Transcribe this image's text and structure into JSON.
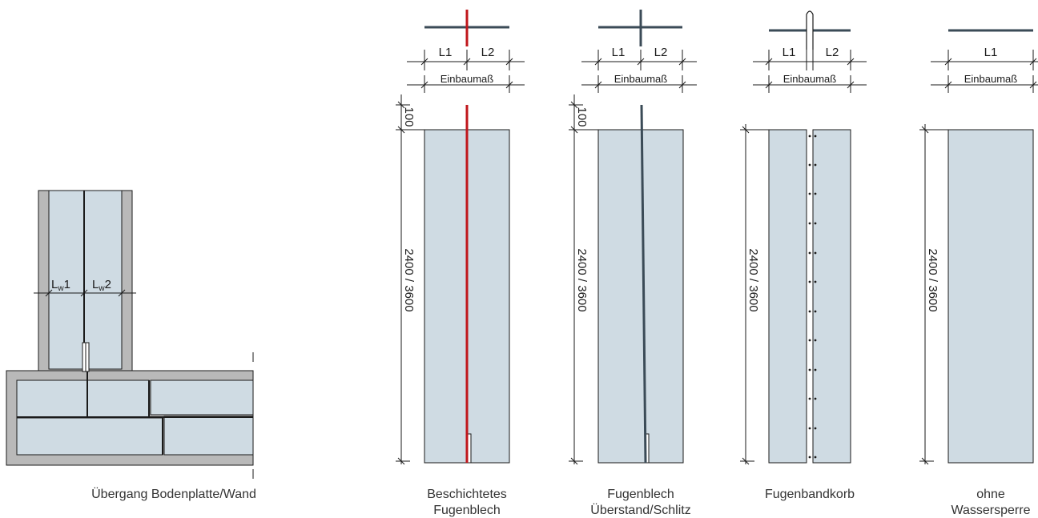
{
  "colors": {
    "panel_fill": "#cfdbe3",
    "concrete_gray": "#b9b9b9",
    "coated_sheet_red": "#c0161b",
    "steel_dark": "#3b4b57",
    "line": "#1a1a1a"
  },
  "detail": {
    "label_lw1": "L",
    "label_lw1_sub": "w",
    "label_lw1_num": "1",
    "label_lw2": "L",
    "label_lw2_sub": "w",
    "label_lw2_num": "2",
    "caption": "Übergang Bodenplatte/Wand"
  },
  "variants": [
    {
      "plan_icon": "coated-sheet-icon",
      "label_l1": "L1",
      "label_l2": "L2",
      "label_width": "Einbaumaß",
      "label_top": "100",
      "label_height": "2400 / 3600",
      "caption_line1": "Beschichtetes",
      "caption_line2": "Fugenblech"
    },
    {
      "plan_icon": "sheet-cross-icon",
      "label_l1": "L1",
      "label_l2": "L2",
      "label_width": "Einbaumaß",
      "label_top": "100",
      "label_height": "2400 / 3600",
      "caption_line1": "Fugenblech",
      "caption_line2": "Überstand/Schlitz"
    },
    {
      "plan_icon": "joint-basket-icon",
      "label_l1": "L1",
      "label_l2": "L2",
      "label_width": "Einbaumaß",
      "label_height": "2400 / 3600",
      "caption_line1": "Fugenbandkorb"
    },
    {
      "plan_icon": "plain-line-icon",
      "label_l1": "L1",
      "label_width": "Einbaumaß",
      "label_height": "2400 / 3600",
      "caption_line1": "ohne",
      "caption_line2": "Wassersperre"
    }
  ]
}
